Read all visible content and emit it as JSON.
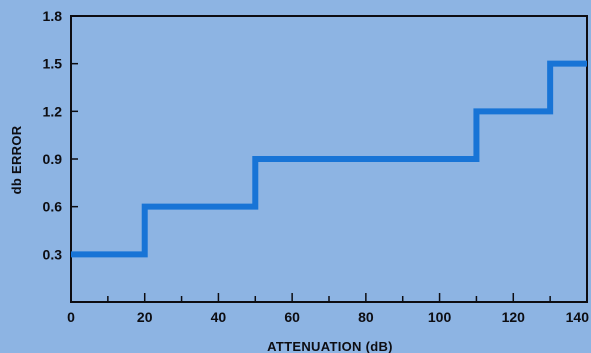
{
  "chart_data": {
    "type": "line",
    "step": true,
    "title": "",
    "xlabel": "ATTENUATION (dB)",
    "ylabel": "db ERROR",
    "xlim": [
      0,
      140
    ],
    "ylim": [
      0,
      1.8
    ],
    "xticks": [
      0,
      20,
      40,
      60,
      80,
      100,
      120,
      140
    ],
    "xtick_labels": [
      "0",
      "20",
      "40",
      "60",
      "80",
      "100",
      "120",
      "140"
    ],
    "minor_xticks": [
      10,
      30,
      50,
      70,
      90,
      110,
      130
    ],
    "yticks": [
      0.3,
      0.6,
      0.9,
      1.2,
      1.5,
      1.8
    ],
    "ytick_labels": [
      "0.3",
      "0.6",
      "0.9",
      "1.2",
      "1.5",
      "1.8"
    ],
    "grid": false,
    "series": [
      {
        "x": [
          0,
          20,
          20,
          50,
          50,
          110,
          110,
          130,
          130,
          140
        ],
        "y": [
          0.3,
          0.3,
          0.6,
          0.6,
          0.9,
          0.9,
          1.2,
          1.2,
          1.5,
          1.5
        ]
      }
    ]
  },
  "colors": {
    "background": "#8db4e3",
    "line": "#1874d6",
    "axis": "#0d0d12"
  }
}
